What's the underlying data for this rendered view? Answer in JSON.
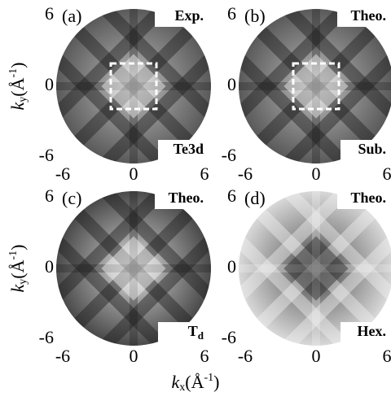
{
  "figure": {
    "x_label": {
      "main": "k",
      "sub": "x",
      "unit": "(Å",
      "sup": "-1",
      "close": ")"
    },
    "y_label": {
      "main": "k",
      "sub": "y",
      "unit": "(Å",
      "sup": "-1",
      "close": ")"
    },
    "xticks": [
      -6,
      0,
      6
    ],
    "yticks": [
      -6,
      0,
      6
    ],
    "panels": [
      {
        "letter": "(a)",
        "tag": "Exp.",
        "corner": {
          "main": "Te3d",
          "sub": ""
        }
      },
      {
        "letter": "(b)",
        "tag": "Theo.",
        "corner": {
          "main": "Sub.",
          "sub": ""
        }
      },
      {
        "letter": "(c)",
        "tag": "Theo.",
        "corner": {
          "main": "T",
          "sub": "d"
        }
      },
      {
        "letter": "(d)",
        "tag": "Theo.",
        "corner": {
          "main": "Hex.",
          "sub": ""
        }
      }
    ]
  }
}
